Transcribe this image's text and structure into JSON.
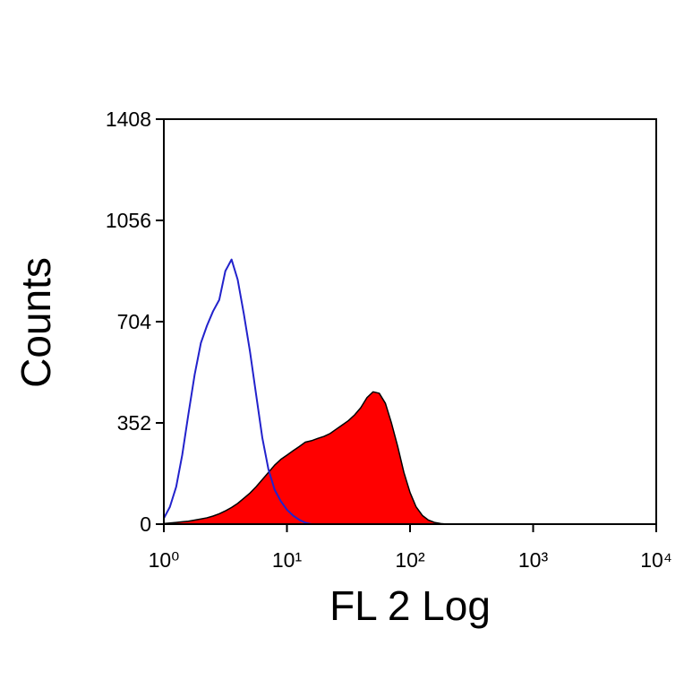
{
  "chart_data": {
    "type": "histogram-overlay",
    "xlabel": "FL 2 Log",
    "ylabel": "Counts",
    "xscale": "log",
    "xlim": [
      1,
      10000
    ],
    "xticks": [
      {
        "value": 1,
        "label": "10⁰"
      },
      {
        "value": 10,
        "label": "10¹"
      },
      {
        "value": 100,
        "label": "10²"
      },
      {
        "value": 1000,
        "label": "10³"
      },
      {
        "value": 10000,
        "label": "10⁴"
      }
    ],
    "ylim": [
      0,
      1408
    ],
    "yticks": [
      0,
      352,
      704,
      1056,
      1408
    ],
    "x": [
      1,
      1.12,
      1.26,
      1.41,
      1.58,
      1.78,
      2.0,
      2.24,
      2.51,
      2.82,
      3.16,
      3.55,
      3.98,
      4.47,
      5.01,
      5.62,
      6.31,
      7.08,
      7.94,
      8.91,
      10,
      11.2,
      12.6,
      14.1,
      15.8,
      17.8,
      20.0,
      22.4,
      25.1,
      28.2,
      31.6,
      35.5,
      39.8,
      44.7,
      50.1,
      56.2,
      63.1,
      70.8,
      79.4,
      89.1,
      100,
      112,
      126,
      141,
      158,
      178,
      200,
      224
    ],
    "series": [
      {
        "color": "#ff0000",
        "edgecolor": "#000000",
        "filled": true,
        "values": [
          2,
          4,
          6,
          8,
          10,
          14,
          18,
          22,
          28,
          36,
          46,
          58,
          72,
          90,
          108,
          130,
          155,
          180,
          205,
          225,
          240,
          255,
          270,
          285,
          290,
          298,
          305,
          315,
          330,
          345,
          360,
          380,
          405,
          440,
          460,
          455,
          420,
          350,
          270,
          180,
          110,
          60,
          30,
          14,
          6,
          2,
          0,
          0
        ]
      },
      {
        "color": "#2222cc",
        "filled": false,
        "values": [
          20,
          60,
          130,
          240,
          380,
          520,
          630,
          690,
          740,
          780,
          880,
          920,
          850,
          730,
          600,
          450,
          300,
          190,
          120,
          80,
          50,
          30,
          15,
          5,
          0,
          null,
          null,
          null,
          null,
          null,
          null,
          null,
          null,
          null,
          null,
          null,
          null,
          null,
          null,
          null,
          null,
          null,
          null,
          null,
          null,
          null,
          null,
          null
        ]
      }
    ]
  }
}
